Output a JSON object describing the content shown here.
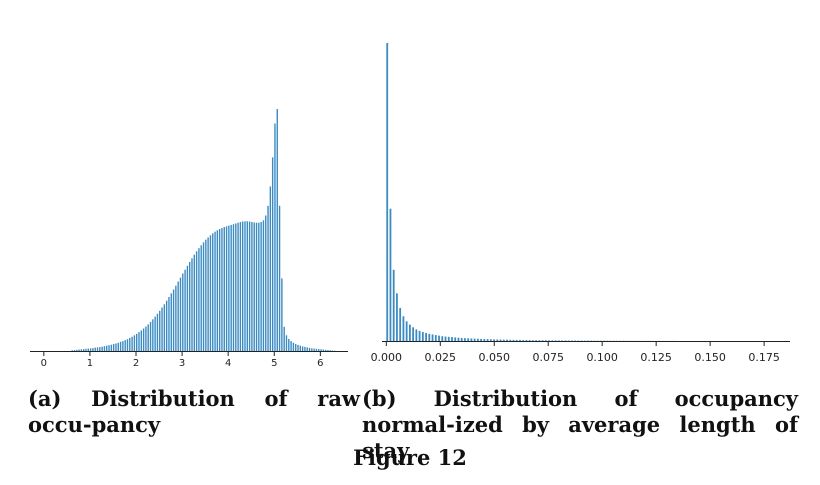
{
  "figure": {
    "caption": "Figure 12"
  },
  "chart_data": [
    {
      "type": "bar",
      "title": "",
      "caption": "(a) Distribution of raw occu-pancy",
      "xlabel": "",
      "ylabel": "",
      "xlim": [
        -0.3,
        6.6
      ],
      "ylim": [
        0,
        1.0
      ],
      "bin_width": 0.05,
      "x_ticks": [
        0,
        1,
        2,
        3,
        4,
        5,
        6
      ],
      "grid": false,
      "color": "#3b8bc2",
      "values": [
        [
          0.0,
          0.0
        ],
        [
          0.05,
          0.0
        ],
        [
          0.1,
          0.0
        ],
        [
          0.15,
          0.0
        ],
        [
          0.2,
          0.0
        ],
        [
          0.25,
          0.0
        ],
        [
          0.3,
          0.0
        ],
        [
          0.35,
          0.0
        ],
        [
          0.4,
          0.0
        ],
        [
          0.45,
          0.0
        ],
        [
          0.5,
          0.0
        ],
        [
          0.55,
          0.0
        ],
        [
          0.6,
          0.003
        ],
        [
          0.65,
          0.004
        ],
        [
          0.7,
          0.005
        ],
        [
          0.75,
          0.006
        ],
        [
          0.8,
          0.007
        ],
        [
          0.85,
          0.008
        ],
        [
          0.9,
          0.009
        ],
        [
          0.95,
          0.01
        ],
        [
          1.0,
          0.011
        ],
        [
          1.05,
          0.012
        ],
        [
          1.1,
          0.014
        ],
        [
          1.15,
          0.015
        ],
        [
          1.2,
          0.016
        ],
        [
          1.25,
          0.018
        ],
        [
          1.3,
          0.02
        ],
        [
          1.35,
          0.022
        ],
        [
          1.4,
          0.024
        ],
        [
          1.45,
          0.026
        ],
        [
          1.5,
          0.029
        ],
        [
          1.55,
          0.031
        ],
        [
          1.6,
          0.034
        ],
        [
          1.65,
          0.038
        ],
        [
          1.7,
          0.041
        ],
        [
          1.75,
          0.045
        ],
        [
          1.8,
          0.049
        ],
        [
          1.85,
          0.054
        ],
        [
          1.9,
          0.059
        ],
        [
          1.95,
          0.065
        ],
        [
          2.0,
          0.071
        ],
        [
          2.05,
          0.078
        ],
        [
          2.1,
          0.085
        ],
        [
          2.15,
          0.093
        ],
        [
          2.2,
          0.101
        ],
        [
          2.25,
          0.11
        ],
        [
          2.3,
          0.12
        ],
        [
          2.35,
          0.131
        ],
        [
          2.4,
          0.142
        ],
        [
          2.45,
          0.154
        ],
        [
          2.5,
          0.166
        ],
        [
          2.55,
          0.18
        ],
        [
          2.6,
          0.193
        ],
        [
          2.65,
          0.208
        ],
        [
          2.7,
          0.223
        ],
        [
          2.75,
          0.238
        ],
        [
          2.8,
          0.254
        ],
        [
          2.85,
          0.27
        ],
        [
          2.9,
          0.287
        ],
        [
          2.95,
          0.303
        ],
        [
          3.0,
          0.32
        ],
        [
          3.05,
          0.336
        ],
        [
          3.1,
          0.352
        ],
        [
          3.15,
          0.368
        ],
        [
          3.2,
          0.383
        ],
        [
          3.25,
          0.398
        ],
        [
          3.3,
          0.412
        ],
        [
          3.35,
          0.425
        ],
        [
          3.4,
          0.437
        ],
        [
          3.45,
          0.449
        ],
        [
          3.5,
          0.46
        ],
        [
          3.55,
          0.469
        ],
        [
          3.6,
          0.478
        ],
        [
          3.65,
          0.486
        ],
        [
          3.7,
          0.493
        ],
        [
          3.75,
          0.499
        ],
        [
          3.8,
          0.504
        ],
        [
          3.85,
          0.508
        ],
        [
          3.9,
          0.512
        ],
        [
          3.95,
          0.515
        ],
        [
          4.0,
          0.518
        ],
        [
          4.05,
          0.521
        ],
        [
          4.1,
          0.524
        ],
        [
          4.15,
          0.527
        ],
        [
          4.2,
          0.53
        ],
        [
          4.25,
          0.533
        ],
        [
          4.3,
          0.535
        ],
        [
          4.35,
          0.536
        ],
        [
          4.4,
          0.536
        ],
        [
          4.45,
          0.535
        ],
        [
          4.5,
          0.533
        ],
        [
          4.55,
          0.531
        ],
        [
          4.6,
          0.53
        ],
        [
          4.65,
          0.53
        ],
        [
          4.7,
          0.533
        ],
        [
          4.75,
          0.54
        ],
        [
          4.8,
          0.56
        ],
        [
          4.85,
          0.6
        ],
        [
          4.9,
          0.68
        ],
        [
          4.95,
          0.8
        ],
        [
          5.0,
          0.94
        ],
        [
          5.05,
          1.0
        ],
        [
          5.1,
          0.6
        ],
        [
          5.15,
          0.3
        ],
        [
          5.2,
          0.1
        ],
        [
          5.25,
          0.065
        ],
        [
          5.3,
          0.05
        ],
        [
          5.35,
          0.041
        ],
        [
          5.4,
          0.034
        ],
        [
          5.45,
          0.029
        ],
        [
          5.5,
          0.025
        ],
        [
          5.55,
          0.022
        ],
        [
          5.6,
          0.019
        ],
        [
          5.65,
          0.017
        ],
        [
          5.7,
          0.015
        ],
        [
          5.75,
          0.013
        ],
        [
          5.8,
          0.011
        ],
        [
          5.85,
          0.01
        ],
        [
          5.9,
          0.009
        ],
        [
          5.95,
          0.008
        ],
        [
          6.0,
          0.007
        ],
        [
          6.05,
          0.006
        ],
        [
          6.1,
          0.005
        ],
        [
          6.15,
          0.004
        ],
        [
          6.2,
          0.003
        ],
        [
          6.25,
          0.002
        ],
        [
          6.3,
          0.001
        ],
        [
          6.35,
          0.0
        ],
        [
          6.4,
          0.0
        ],
        [
          6.45,
          0.0
        ]
      ]
    },
    {
      "type": "bar",
      "title": "",
      "caption": "(b) Distribution of occupancy normal-ized by average length of stay",
      "xlabel": "",
      "ylabel": "",
      "xlim": [
        -0.002,
        0.187
      ],
      "ylim": [
        0,
        1.0
      ],
      "bin_width": 0.0015,
      "x_ticks": [
        "0.000",
        "0.025",
        "0.050",
        "0.075",
        "0.100",
        "0.125",
        "0.150",
        "0.175"
      ],
      "grid": false,
      "color": "#3b8bc2",
      "values": [
        [
          0.0,
          1.0
        ],
        [
          0.0015,
          0.444
        ],
        [
          0.003,
          0.239
        ],
        [
          0.0045,
          0.16
        ],
        [
          0.006,
          0.111
        ],
        [
          0.0075,
          0.083
        ],
        [
          0.009,
          0.066
        ],
        [
          0.0105,
          0.055
        ],
        [
          0.012,
          0.046
        ],
        [
          0.0135,
          0.039
        ],
        [
          0.015,
          0.034
        ],
        [
          0.0165,
          0.03
        ],
        [
          0.018,
          0.027
        ],
        [
          0.0195,
          0.024
        ],
        [
          0.021,
          0.022
        ],
        [
          0.0225,
          0.02
        ],
        [
          0.024,
          0.018
        ],
        [
          0.0255,
          0.016
        ],
        [
          0.027,
          0.015
        ],
        [
          0.0285,
          0.014
        ],
        [
          0.03,
          0.013
        ],
        [
          0.0315,
          0.012
        ],
        [
          0.033,
          0.011
        ],
        [
          0.0345,
          0.01
        ],
        [
          0.036,
          0.0095
        ],
        [
          0.0375,
          0.009
        ],
        [
          0.039,
          0.0085
        ],
        [
          0.0405,
          0.008
        ],
        [
          0.042,
          0.0075
        ],
        [
          0.0435,
          0.007
        ],
        [
          0.045,
          0.0066
        ],
        [
          0.0465,
          0.0062
        ],
        [
          0.048,
          0.0058
        ],
        [
          0.0495,
          0.0055
        ],
        [
          0.051,
          0.0052
        ],
        [
          0.0525,
          0.0049
        ],
        [
          0.054,
          0.0046
        ],
        [
          0.0555,
          0.0044
        ],
        [
          0.057,
          0.0041
        ],
        [
          0.0585,
          0.0039
        ],
        [
          0.06,
          0.0037
        ],
        [
          0.0615,
          0.0035
        ],
        [
          0.063,
          0.0033
        ],
        [
          0.0645,
          0.0031
        ],
        [
          0.066,
          0.003
        ],
        [
          0.0675,
          0.0028
        ],
        [
          0.069,
          0.0027
        ],
        [
          0.0705,
          0.0025
        ],
        [
          0.072,
          0.0024
        ],
        [
          0.0735,
          0.0023
        ],
        [
          0.075,
          0.0022
        ],
        [
          0.0765,
          0.0021
        ],
        [
          0.078,
          0.002
        ],
        [
          0.0795,
          0.0019
        ],
        [
          0.081,
          0.0018
        ],
        [
          0.0825,
          0.0017
        ],
        [
          0.084,
          0.0016
        ],
        [
          0.0855,
          0.0015
        ],
        [
          0.087,
          0.0015
        ],
        [
          0.0885,
          0.0014
        ],
        [
          0.09,
          0.0013
        ],
        [
          0.0915,
          0.0013
        ],
        [
          0.093,
          0.0012
        ],
        [
          0.0945,
          0.0011
        ],
        [
          0.096,
          0.0011
        ],
        [
          0.0975,
          0.001
        ],
        [
          0.099,
          0.001
        ],
        [
          0.1005,
          0.0009
        ],
        [
          0.102,
          0.0009
        ],
        [
          0.1035,
          0.0008
        ],
        [
          0.105,
          0.0008
        ],
        [
          0.1065,
          0.0007
        ],
        [
          0.108,
          0.0007
        ],
        [
          0.1095,
          0.0007
        ],
        [
          0.111,
          0.0006
        ],
        [
          0.1125,
          0.0006
        ],
        [
          0.114,
          0.0005
        ],
        [
          0.1155,
          0.0005
        ],
        [
          0.117,
          0.0005
        ],
        [
          0.1185,
          0.0004
        ],
        [
          0.12,
          0.0004
        ],
        [
          0.1215,
          0.0004
        ],
        [
          0.123,
          0.0003
        ],
        [
          0.1245,
          0.0003
        ],
        [
          0.126,
          0.0003
        ],
        [
          0.1275,
          0.0003
        ],
        [
          0.129,
          0.0002
        ],
        [
          0.1305,
          0.0002
        ],
        [
          0.132,
          0.0002
        ],
        [
          0.1335,
          0.0002
        ]
      ]
    }
  ]
}
